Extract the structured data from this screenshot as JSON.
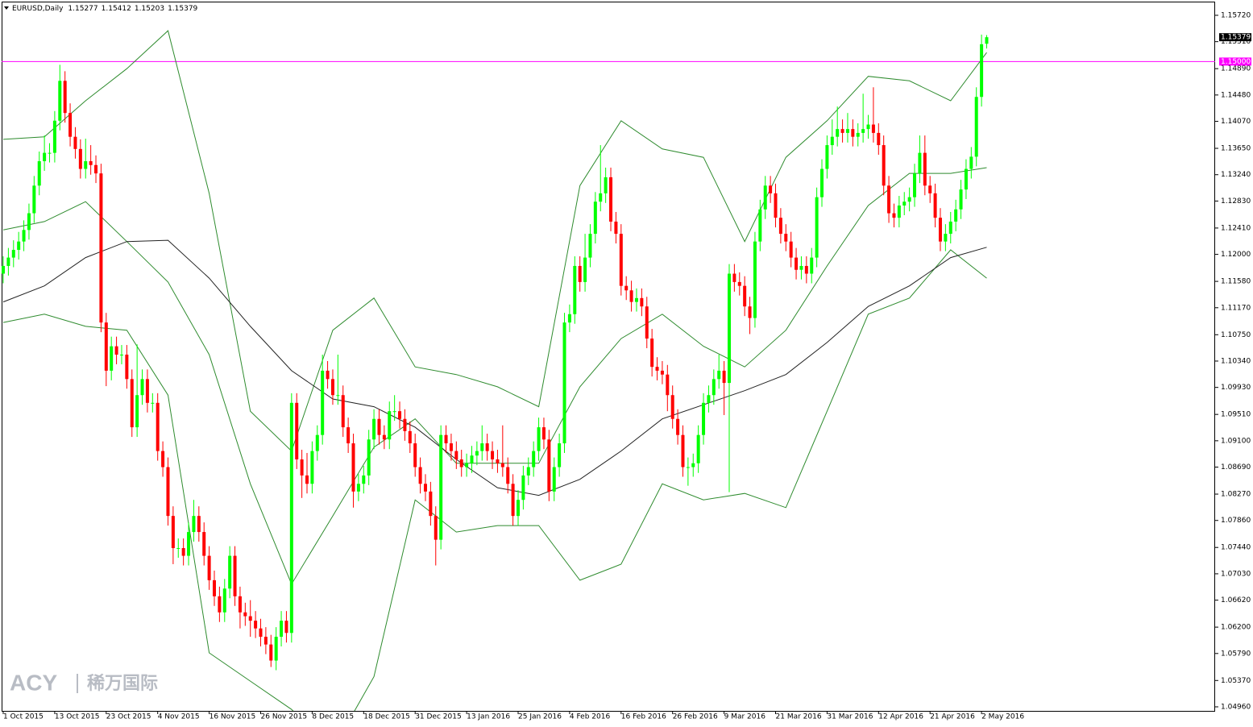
{
  "chart_data": {
    "type": "candlestick",
    "symbol": "EURUSD,Daily",
    "watermark": {
      "brand": "ACY",
      "name": "稀万国际"
    },
    "up_color": "#00ff00",
    "down_color": "#ff0000",
    "categories": [
      "1 Oct 2015",
      null,
      null,
      null,
      null,
      null,
      null,
      null,
      null,
      null,
      "13 Oct 2015",
      null,
      null,
      null,
      null,
      null,
      null,
      null,
      null,
      null,
      "23 Oct 2015",
      null,
      null,
      null,
      null,
      null,
      null,
      null,
      null,
      null,
      "4 Nov 2015",
      null,
      null,
      null,
      null,
      null,
      null,
      null,
      null,
      null,
      "16 Nov 2015",
      null,
      null,
      null,
      null,
      null,
      null,
      null,
      null,
      null,
      "26 Nov 2015",
      null,
      null,
      null,
      null,
      null,
      null,
      null,
      null,
      null,
      "8 Dec 2015",
      null,
      null,
      null,
      null,
      null,
      null,
      null,
      null,
      null,
      "18 Dec 2015",
      null,
      null,
      null,
      null,
      null,
      null,
      null,
      null,
      null,
      "31 Dec 2015",
      null,
      null,
      null,
      null,
      null,
      null,
      null,
      null,
      null,
      "13 Jan 2016",
      null,
      null,
      null,
      null,
      null,
      null,
      null,
      null,
      null,
      "25 Jan 2016",
      null,
      null,
      null,
      null,
      null,
      null,
      null,
      null,
      null,
      "4 Feb 2016",
      null,
      null,
      null,
      null,
      null,
      null,
      null,
      null,
      null,
      "16 Feb 2016",
      null,
      null,
      null,
      null,
      null,
      null,
      null,
      null,
      null,
      "26 Feb 2016",
      null,
      null,
      null,
      null,
      null,
      null,
      null,
      null,
      null,
      "9 Mar 2016",
      null,
      null,
      null,
      null,
      null,
      null,
      null,
      null,
      null,
      "21 Mar 2016",
      null,
      null,
      null,
      null,
      null,
      null,
      null,
      null,
      null,
      "31 Mar 2016",
      null,
      null,
      null,
      null,
      null,
      null,
      null,
      null,
      null,
      "12 Apr 2016",
      null,
      null,
      null,
      null,
      null,
      null,
      null,
      null,
      null,
      "21 Apr 2016",
      null,
      null,
      null,
      null,
      null,
      null,
      null,
      null,
      null,
      "2 May 2016",
      null
    ],
    "open": [
      1.117,
      1.1182,
      1.1195,
      1.1207,
      1.122,
      1.1238,
      1.1264,
      1.1307,
      1.1345,
      1.1358,
      1.1358,
      1.1408,
      1.147,
      1.142,
      1.1383,
      1.1364,
      1.1333,
      1.1345,
      1.1339,
      1.1326,
      1.1094,
      1.1019,
      1.1057,
      1.1044,
      1.1044,
      1.1006,
      1.0931,
      1.0981,
      1.1006,
      1.0969,
      1.0969,
      1.0894,
      1.0869,
      1.0793,
      1.0743,
      1.0743,
      1.0731,
      1.0768,
      1.0793,
      1.0768,
      1.0731,
      1.0693,
      1.0668,
      1.0643,
      1.068,
      1.0731,
      1.0668,
      1.0643,
      1.0637,
      1.063,
      1.0618,
      1.0605,
      1.0593,
      1.0568,
      1.0605,
      1.063,
      1.0611,
      1.0969,
      1.0881,
      1.0856,
      1.0843,
      1.0894,
      1.0919,
      1.1019,
      1.1006,
      1.0981,
      1.0981,
      1.0931,
      1.0906,
      1.0831,
      1.0843,
      1.0856,
      1.0912,
      1.0944,
      1.0919,
      1.0912,
      1.0956,
      1.0956,
      1.0944,
      1.0925,
      1.0906,
      1.0869,
      1.0843,
      1.0831,
      1.0793,
      1.0756,
      1.0919,
      1.0906,
      1.0894,
      1.0881,
      1.0869,
      1.0875,
      1.0887,
      1.0894,
      1.0906,
      1.0894,
      1.0881,
      1.0875,
      1.0869,
      1.0843,
      1.0793,
      1.0818,
      1.0856,
      1.0869,
      1.0894,
      1.0931,
      1.0912,
      1.0831,
      1.0869,
      1.0906,
      1.1094,
      1.1107,
      1.1182,
      1.1157,
      1.1195,
      1.1232,
      1.1282,
      1.1295,
      1.132,
      1.1251,
      1.1232,
      1.1151,
      1.1144,
      1.1126,
      1.1132,
      1.1119,
      1.1069,
      1.1025,
      1.1019,
      1.1013,
      1.0981,
      1.0944,
      1.0919,
      1.0869,
      1.0869,
      1.0875,
      1.0919,
      1.0969,
      1.0981,
      1.1006,
      1.1019,
      1.1,
      1.117,
      1.1157,
      1.1151,
      1.1119,
      1.1101,
      1.122,
      1.127,
      1.1307,
      1.1295,
      1.1257,
      1.1232,
      1.122,
      1.1195,
      1.1176,
      1.1182,
      1.117,
      1.1195,
      1.1289,
      1.1333,
      1.137,
      1.1383,
      1.1395,
      1.1389,
      1.1395,
      1.1383,
      1.1389,
      1.1395,
      1.1402,
      1.1389,
      1.137,
      1.1307,
      1.1264,
      1.1257,
      1.1276,
      1.1282,
      1.1289,
      1.1326,
      1.1358,
      1.1307,
      1.1295,
      1.1257,
      1.122,
      1.1232,
      1.1251,
      1.127,
      1.1301,
      1.1333,
      1.1352,
      1.1445,
      1.15277
    ],
    "high": [
      1.1197,
      1.121,
      1.1222,
      1.1235,
      1.1253,
      1.1279,
      1.1322,
      1.136,
      1.1385,
      1.1373,
      1.1423,
      1.1495,
      1.1485,
      1.1435,
      1.1398,
      1.1379,
      1.138,
      1.137,
      1.1354,
      1.1341,
      1.1109,
      1.1072,
      1.1072,
      1.1059,
      1.1059,
      1.1021,
      1.106,
      1.1021,
      1.1021,
      1.0984,
      1.0984,
      1.0909,
      1.0884,
      1.0808,
      1.0758,
      1.0758,
      1.0783,
      1.0818,
      1.0808,
      1.0783,
      1.0746,
      1.0708,
      1.0683,
      1.0695,
      1.0746,
      1.0746,
      1.0683,
      1.0658,
      1.0662,
      1.0645,
      1.0633,
      1.062,
      1.0608,
      1.062,
      1.0645,
      1.0645,
      1.0984,
      1.0984,
      1.0896,
      1.0891,
      1.0909,
      1.0934,
      1.1044,
      1.1034,
      1.1021,
      1.1044,
      1.0996,
      1.0946,
      1.0921,
      1.0858,
      1.0871,
      1.0927,
      1.0959,
      1.0959,
      1.0934,
      1.0971,
      1.0981,
      1.0971,
      1.0959,
      1.094,
      1.0921,
      1.0884,
      1.0858,
      1.0846,
      1.0808,
      1.0934,
      1.0934,
      1.0921,
      1.0909,
      1.0896,
      1.089,
      1.0902,
      1.0909,
      1.0934,
      1.0921,
      1.0909,
      1.0896,
      1.0934,
      1.0884,
      1.0858,
      1.0833,
      1.0871,
      1.0884,
      1.0909,
      1.0946,
      1.0946,
      1.0927,
      1.0884,
      1.0921,
      1.1109,
      1.1122,
      1.1197,
      1.1197,
      1.1232,
      1.1247,
      1.1297,
      1.137,
      1.1335,
      1.1335,
      1.1266,
      1.1247,
      1.1166,
      1.1159,
      1.1147,
      1.1147,
      1.1134,
      1.1084,
      1.104,
      1.1034,
      1.1028,
      1.0996,
      1.0959,
      1.0934,
      1.0884,
      1.089,
      1.0934,
      1.0984,
      1.0996,
      1.1021,
      1.1044,
      1.1034,
      1.1185,
      1.1185,
      1.1172,
      1.1166,
      1.1134,
      1.1235,
      1.1285,
      1.1322,
      1.1322,
      1.131,
      1.1272,
      1.1247,
      1.1235,
      1.121,
      1.1197,
      1.1197,
      1.121,
      1.1304,
      1.1348,
      1.1385,
      1.141,
      1.143,
      1.141,
      1.142,
      1.141,
      1.1404,
      1.145,
      1.1417,
      1.146,
      1.1404,
      1.1385,
      1.1322,
      1.1279,
      1.1291,
      1.1297,
      1.1304,
      1.1341,
      1.1385,
      1.1385,
      1.1322,
      1.131,
      1.1272,
      1.1247,
      1.1266,
      1.1285,
      1.1316,
      1.1348,
      1.1367,
      1.146,
      1.1542,
      1.15412
    ],
    "low": [
      1.1155,
      1.1167,
      1.118,
      1.1192,
      1.1205,
      1.1223,
      1.1249,
      1.1292,
      1.133,
      1.1343,
      1.1343,
      1.1393,
      1.1405,
      1.1368,
      1.1349,
      1.1318,
      1.1318,
      1.1324,
      1.1311,
      1.1079,
      1.0995,
      1.1004,
      1.1029,
      1.1029,
      1.0991,
      1.0916,
      1.0916,
      1.0966,
      1.0954,
      1.0954,
      1.0879,
      1.0854,
      1.0778,
      1.0718,
      1.0728,
      1.0716,
      1.0716,
      1.0753,
      1.0753,
      1.0716,
      1.0678,
      1.0653,
      1.0628,
      1.0628,
      1.0665,
      1.0653,
      1.0618,
      1.0622,
      1.0605,
      1.0603,
      1.059,
      1.0578,
      1.0558,
      1.0553,
      1.059,
      1.0596,
      1.0596,
      1.0866,
      1.0821,
      1.0828,
      1.0828,
      1.0879,
      1.0904,
      1.0991,
      1.0966,
      1.0966,
      1.0916,
      1.0891,
      1.0806,
      1.0816,
      1.0828,
      1.0841,
      1.0897,
      1.0904,
      1.0897,
      1.0897,
      1.0941,
      1.0929,
      1.091,
      1.0891,
      1.0854,
      1.0828,
      1.0816,
      1.0778,
      1.0716,
      1.0741,
      1.0891,
      1.0879,
      1.0866,
      1.0854,
      1.0854,
      1.086,
      1.0872,
      1.0879,
      1.0879,
      1.0866,
      1.086,
      1.0854,
      1.0828,
      1.0778,
      1.0778,
      1.0803,
      1.0841,
      1.0854,
      1.0879,
      1.0897,
      1.0816,
      1.0816,
      1.0854,
      1.0891,
      1.1079,
      1.1092,
      1.1142,
      1.1142,
      1.118,
      1.1217,
      1.1267,
      1.128,
      1.1236,
      1.1217,
      1.1136,
      1.1129,
      1.1111,
      1.1111,
      1.1104,
      1.1054,
      1.101,
      1.1004,
      1.0998,
      1.0956,
      1.0929,
      1.0904,
      1.0854,
      1.084,
      1.0854,
      1.086,
      1.0904,
      1.0954,
      1.0966,
      1.0991,
      1.095,
      1.083,
      1.1142,
      1.1136,
      1.1104,
      1.1076,
      1.1086,
      1.1205,
      1.1255,
      1.128,
      1.1242,
      1.1217,
      1.1205,
      1.118,
      1.1161,
      1.1161,
      1.1155,
      1.1155,
      1.118,
      1.1274,
      1.1318,
      1.1355,
      1.1368,
      1.1374,
      1.1374,
      1.1368,
      1.1368,
      1.1374,
      1.138,
      1.1374,
      1.1355,
      1.1292,
      1.1249,
      1.1242,
      1.1242,
      1.1261,
      1.1267,
      1.1274,
      1.1311,
      1.1292,
      1.128,
      1.1242,
      1.1205,
      1.1205,
      1.1217,
      1.1236,
      1.1255,
      1.1286,
      1.1318,
      1.1337,
      1.143,
      1.15203
    ],
    "close": [
      1.1182,
      1.1195,
      1.1207,
      1.122,
      1.1238,
      1.1264,
      1.1307,
      1.1345,
      1.1358,
      1.1358,
      1.1408,
      1.147,
      1.142,
      1.1383,
      1.1364,
      1.1333,
      1.1345,
      1.1339,
      1.1326,
      1.1094,
      1.1019,
      1.1057,
      1.1044,
      1.1044,
      1.1006,
      1.0931,
      1.0981,
      1.1006,
      1.0969,
      1.0969,
      1.0894,
      1.0869,
      1.0793,
      1.0743,
      1.0743,
      1.0731,
      1.0768,
      1.0793,
      1.0768,
      1.0731,
      1.0693,
      1.0668,
      1.0643,
      1.068,
      1.0731,
      1.0668,
      1.0643,
      1.0637,
      1.063,
      1.0618,
      1.0605,
      1.0593,
      1.0568,
      1.0605,
      1.063,
      1.0611,
      1.0969,
      1.0881,
      1.0856,
      1.0843,
      1.0894,
      1.0919,
      1.1019,
      1.1006,
      1.0981,
      1.0981,
      1.0931,
      1.0906,
      1.0831,
      1.0843,
      1.0856,
      1.0912,
      1.0944,
      1.0919,
      1.0912,
      1.0956,
      1.0956,
      1.0944,
      1.0925,
      1.0906,
      1.0869,
      1.0843,
      1.0831,
      1.0793,
      1.0756,
      1.0919,
      1.0906,
      1.0894,
      1.0881,
      1.0869,
      1.0875,
      1.0887,
      1.0894,
      1.0906,
      1.0894,
      1.0881,
      1.0875,
      1.0869,
      1.0843,
      1.0793,
      1.0818,
      1.0856,
      1.0869,
      1.0894,
      1.0931,
      1.0912,
      1.0831,
      1.0869,
      1.0906,
      1.1094,
      1.1107,
      1.1182,
      1.1157,
      1.1195,
      1.1232,
      1.1282,
      1.1295,
      1.132,
      1.1251,
      1.1232,
      1.1151,
      1.1144,
      1.1126,
      1.1132,
      1.1119,
      1.1069,
      1.1025,
      1.1019,
      1.1013,
      1.0981,
      1.0944,
      1.0919,
      1.0869,
      1.0869,
      1.0875,
      1.0919,
      1.0969,
      1.0981,
      1.1006,
      1.1019,
      1.1,
      1.117,
      1.1157,
      1.1151,
      1.1119,
      1.1101,
      1.122,
      1.127,
      1.1307,
      1.1295,
      1.1257,
      1.1232,
      1.122,
      1.1195,
      1.1176,
      1.1182,
      1.117,
      1.1195,
      1.1289,
      1.1333,
      1.137,
      1.1383,
      1.1395,
      1.1389,
      1.1395,
      1.1383,
      1.1389,
      1.1395,
      1.1402,
      1.1389,
      1.137,
      1.1307,
      1.1264,
      1.1257,
      1.1276,
      1.1282,
      1.1289,
      1.1326,
      1.1358,
      1.1307,
      1.1295,
      1.1257,
      1.122,
      1.1232,
      1.1251,
      1.127,
      1.1301,
      1.1333,
      1.1352,
      1.1445,
      1.1527,
      1.15379
    ],
    "overlays": [
      {
        "color": "#2e8b2e",
        "x": [
          0,
          8,
          16,
          24,
          32,
          40,
          48,
          56,
          64,
          72,
          80,
          88,
          96,
          104,
          112,
          120,
          128,
          136,
          144,
          152,
          160,
          168,
          176,
          184,
          191
        ],
        "values": [
          1.1379,
          1.1383,
          1.1439,
          1.1489,
          1.1548,
          1.1295,
          1.0956,
          1.0894,
          1.1082,
          1.1132,
          1.1025,
          1.1013,
          1.0994,
          1.0963,
          1.1307,
          1.1408,
          1.1364,
          1.1351,
          1.122,
          1.1351,
          1.1408,
          1.1477,
          1.147,
          1.1439,
          1.1514
        ]
      },
      {
        "color": "#2e8b2e",
        "x": [
          0,
          8,
          16,
          24,
          32,
          40,
          48,
          56,
          64,
          72,
          80,
          88,
          96,
          104,
          112,
          120,
          128,
          136,
          144,
          152,
          160,
          168,
          176,
          184,
          191
        ],
        "values": [
          1.1238,
          1.1251,
          1.1282,
          1.122,
          1.1157,
          1.1044,
          1.0843,
          1.0687,
          1.0793,
          1.09,
          1.0944,
          1.0875,
          1.0875,
          1.0875,
          1.0994,
          1.1069,
          1.1107,
          1.1057,
          1.1025,
          1.1082,
          1.1182,
          1.1276,
          1.1326,
          1.1326,
          1.1335
        ]
      },
      {
        "color": "#2e8b2e",
        "x": [
          0,
          8,
          16,
          24,
          32,
          40,
          48,
          56,
          64,
          72,
          80,
          88,
          96,
          104,
          112,
          120,
          128,
          136,
          144,
          152,
          160,
          168,
          176,
          184,
          191
        ],
        "values": [
          1.1094,
          1.1107,
          1.1088,
          1.1082,
          1.0981,
          1.058,
          1.0536,
          1.0492,
          1.043,
          1.0543,
          1.0818,
          1.0768,
          1.0778,
          1.0778,
          1.0693,
          1.0718,
          1.0843,
          1.0818,
          1.0828,
          1.0806,
          1.0956,
          1.1107,
          1.1132,
          1.1207,
          1.1163
        ]
      },
      {
        "color": "#222222",
        "x": [
          0,
          8,
          16,
          24,
          32,
          40,
          48,
          56,
          64,
          72,
          80,
          88,
          96,
          104,
          112,
          120,
          128,
          136,
          144,
          152,
          160,
          168,
          176,
          184,
          191
        ],
        "values": [
          1.1126,
          1.1151,
          1.1195,
          1.122,
          1.1222,
          1.1163,
          1.1088,
          1.1019,
          1.0975,
          1.0963,
          1.0931,
          1.0881,
          1.0837,
          1.0825,
          1.085,
          1.0894,
          1.0944,
          1.0966,
          1.0988,
          1.1013,
          1.1063,
          1.1119,
          1.1151,
          1.1195,
          1.1211
        ]
      }
    ],
    "level": {
      "value": 1.15,
      "label": "1.15000",
      "color": "#ff00ff"
    },
    "ylim": [
      1.04897,
      1.15958
    ],
    "yticks": [
      {
        "value": 1.0496,
        "label": "1.04960"
      },
      {
        "value": 1.0537,
        "label": "1.05370"
      },
      {
        "value": 1.0579,
        "label": "1.05790"
      },
      {
        "value": 1.062,
        "label": "1.06200"
      },
      {
        "value": 1.0662,
        "label": "1.06620"
      },
      {
        "value": 1.0703,
        "label": "1.07030"
      },
      {
        "value": 1.0744,
        "label": "1.07440"
      },
      {
        "value": 1.0786,
        "label": "1.07860"
      },
      {
        "value": 1.0827,
        "label": "1.08270"
      },
      {
        "value": 1.0869,
        "label": "1.08690"
      },
      {
        "value": 1.091,
        "label": "1.09100"
      },
      {
        "value": 1.0951,
        "label": "1.09510"
      },
      {
        "value": 1.0993,
        "label": "1.09930"
      },
      {
        "value": 1.1034,
        "label": "1.10340"
      },
      {
        "value": 1.1075,
        "label": "1.10750"
      },
      {
        "value": 1.1117,
        "label": "1.11170"
      },
      {
        "value": 1.1158,
        "label": "1.11580"
      },
      {
        "value": 1.12,
        "label": "1.12000"
      },
      {
        "value": 1.1241,
        "label": "1.12410"
      },
      {
        "value": 1.1283,
        "label": "1.12830"
      },
      {
        "value": 1.1324,
        "label": "1.13240"
      },
      {
        "value": 1.1365,
        "label": "1.13650"
      },
      {
        "value": 1.1407,
        "label": "1.14070"
      },
      {
        "value": 1.1448,
        "label": "1.14480"
      },
      {
        "value": 1.1489,
        "label": "1.14890"
      },
      {
        "value": 1.1531,
        "label": "1.15310"
      },
      {
        "value": 1.1572,
        "label": "1.15720"
      }
    ]
  }
}
